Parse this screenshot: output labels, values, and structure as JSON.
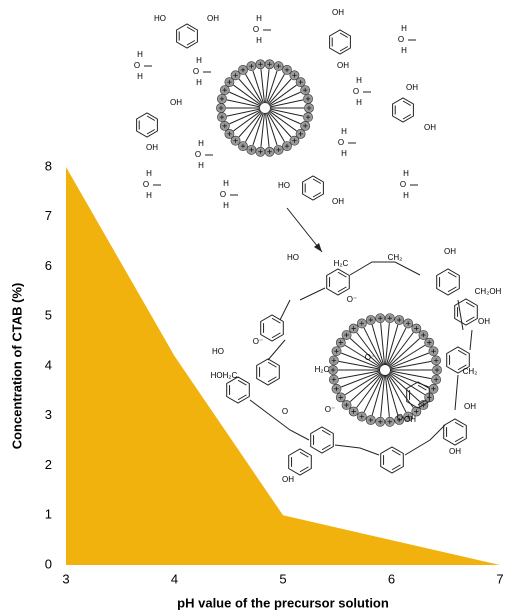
{
  "chart_data": {
    "type": "area",
    "x": [
      3,
      4,
      5,
      7
    ],
    "values": [
      8,
      4.2,
      1,
      0
    ],
    "color": "#f2b20d",
    "xlabel": "pH value of the precursor solution",
    "ylabel": "Concentration of CTAB (%)",
    "xlim": [
      3,
      7
    ],
    "xticks": [
      3,
      4,
      5,
      6,
      7
    ],
    "ylim": [
      0,
      8
    ],
    "yticks": [
      0,
      1,
      2,
      3,
      4,
      5,
      6,
      7,
      8
    ],
    "grid": false,
    "annotations": [
      "HO",
      "OH",
      "OH",
      "OH",
      "OH",
      "OH",
      "OH",
      "OH",
      "HO",
      "OH",
      "H",
      "O",
      "H",
      "H",
      "O",
      "H",
      "H",
      "O",
      "H",
      "H",
      "O",
      "H",
      "H",
      "O",
      "H",
      "H",
      "O",
      "H",
      "H",
      "O",
      "H",
      "H",
      "O",
      "H",
      "H",
      "O",
      "H",
      "H",
      "O",
      "H",
      "HO",
      "H₂C",
      "CH₂",
      "OH",
      "O⁻",
      "CH₂OH",
      "OH",
      "O⁻",
      "CH₂",
      "OH",
      "OH",
      "O⁻",
      "HOH₂C",
      "HO",
      "H₂C",
      "O⁻",
      "O",
      "O",
      "OH",
      "OH"
    ]
  }
}
